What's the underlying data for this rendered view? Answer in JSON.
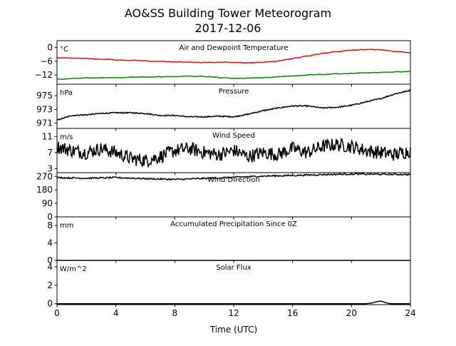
{
  "figure": {
    "title": "AO&SS Building Tower Meteorogram",
    "subtitle": "2017-12-06",
    "xlabel": "Time (UTC)",
    "colors": {
      "temperature": "#ee1111",
      "dewpoint": "#118811",
      "default": "#000000"
    }
  },
  "chart_data": [
    {
      "type": "line",
      "title": "Air and Dewpoint Temperature",
      "unit_label": "°C",
      "xlim": [
        0,
        24
      ],
      "ylim": [
        -16,
        3
      ],
      "yticks": [
        0,
        -6,
        -12
      ],
      "ytick_labels": [
        "0",
        "−6",
        "−12"
      ],
      "xticks": [
        0,
        4,
        8,
        12,
        16,
        20,
        24
      ],
      "series": [
        {
          "color": "#ee1111",
          "x": [
            0,
            2,
            4,
            6,
            8,
            10,
            12,
            13,
            14,
            15,
            16,
            17,
            18,
            19,
            20,
            21,
            22,
            23,
            24
          ],
          "y": [
            -4.5,
            -4.8,
            -5.4,
            -5.8,
            -6.3,
            -6.5,
            -6.4,
            -6.6,
            -6.5,
            -5.9,
            -4.8,
            -3.7,
            -2.6,
            -1.8,
            -1.2,
            -0.8,
            -1.0,
            -1.7,
            -2.4
          ]
        },
        {
          "color": "#118811",
          "x": [
            0,
            2,
            4,
            6,
            8,
            9,
            10,
            11,
            12,
            13,
            14,
            16,
            18,
            20,
            22,
            24
          ],
          "y": [
            -13.8,
            -13.3,
            -13.1,
            -12.9,
            -12.6,
            -12.5,
            -12.6,
            -13.1,
            -13.5,
            -13.4,
            -13.1,
            -12.4,
            -11.7,
            -11.3,
            -10.9,
            -10.4
          ]
        }
      ]
    },
    {
      "type": "line",
      "title": "Pressure",
      "unit_label": "hPa",
      "xlim": [
        0,
        24
      ],
      "ylim": [
        970.2,
        976.7
      ],
      "yticks": [
        971,
        973,
        975
      ],
      "ytick_labels": [
        "971",
        "973",
        "975"
      ],
      "xticks": [
        0,
        4,
        8,
        12,
        16,
        20,
        24
      ],
      "series": [
        {
          "color": "#000000",
          "x": [
            0,
            1,
            2,
            3,
            4,
            5,
            6,
            7,
            8,
            9,
            10,
            11,
            12,
            13,
            14,
            15,
            16,
            17,
            18,
            19,
            20,
            21,
            22,
            23,
            24
          ],
          "y": [
            971.4,
            972.1,
            972.2,
            972.4,
            972.5,
            972.5,
            972.4,
            972.1,
            972.1,
            971.9,
            971.9,
            972.0,
            971.9,
            972.3,
            972.8,
            973.2,
            973.5,
            973.5,
            973.2,
            973.3,
            973.6,
            974.1,
            974.6,
            975.3,
            975.8
          ]
        }
      ]
    },
    {
      "type": "line",
      "title": "Wind Speed",
      "unit_label": "m/s",
      "xlim": [
        0,
        24
      ],
      "ylim": [
        2,
        13
      ],
      "yticks": [
        3,
        7,
        11
      ],
      "ytick_labels": [
        "3",
        "7",
        "11"
      ],
      "xticks": [
        0,
        4,
        8,
        12,
        16,
        20,
        24
      ],
      "series": [
        {
          "color": "#000000",
          "x": [
            0,
            1,
            2,
            3,
            4,
            5,
            6,
            7,
            8,
            9,
            10,
            11,
            12,
            13,
            14,
            15,
            16,
            17,
            18,
            19,
            20,
            21,
            22,
            23,
            24
          ],
          "y": [
            8.5,
            7.5,
            7.0,
            8.0,
            7.0,
            5.5,
            5.0,
            6.0,
            7.5,
            8.0,
            7.0,
            6.5,
            7.5,
            6.0,
            7.0,
            6.5,
            8.0,
            7.0,
            8.5,
            9.0,
            8.5,
            7.5,
            7.0,
            6.5,
            7.5
          ]
        }
      ]
    },
    {
      "type": "line",
      "title": "Wind Direction",
      "unit_label": "",
      "xlim": [
        0,
        24
      ],
      "ylim": [
        0,
        295
      ],
      "yticks": [
        0,
        90,
        180,
        270
      ],
      "ytick_labels": [
        "0",
        "90",
        "180",
        "270"
      ],
      "xticks": [
        0,
        4,
        8,
        12,
        16,
        20,
        24
      ],
      "series": [
        {
          "color": "#000000",
          "x": [
            0,
            2,
            4,
            6,
            8,
            10,
            12,
            13,
            14,
            16,
            18,
            20,
            22,
            24
          ],
          "y": [
            262,
            258,
            262,
            255,
            250,
            256,
            264,
            268,
            272,
            276,
            282,
            286,
            284,
            283
          ]
        }
      ]
    },
    {
      "type": "line",
      "title": "Accumulated Precipitation Since 0Z",
      "unit_label": "mm",
      "xlim": [
        0,
        24
      ],
      "ylim": [
        0,
        10
      ],
      "yticks": [
        0,
        4,
        8
      ],
      "ytick_labels": [
        "0",
        "4",
        "8"
      ],
      "xticks": [
        0,
        4,
        8,
        12,
        16,
        20,
        24
      ],
      "series": [
        {
          "color": "#000000",
          "x": [
            0,
            24
          ],
          "y": [
            0,
            0
          ]
        }
      ]
    },
    {
      "type": "line",
      "title": "Solar Flux",
      "unit_label": "W/m^2",
      "xlim": [
        0,
        24
      ],
      "ylim": [
        -0.1,
        4.7
      ],
      "yticks": [
        0,
        2,
        4
      ],
      "ytick_labels": [
        "0",
        "2",
        "4"
      ],
      "xticks": [
        0,
        4,
        8,
        12,
        16,
        20,
        24
      ],
      "xtick_labels": [
        "0",
        "4",
        "8",
        "12",
        "16",
        "20",
        "24"
      ],
      "series": [
        {
          "color": "#000000",
          "x": [
            0,
            21.0,
            21.4,
            21.7,
            22.0,
            22.3,
            22.6,
            24
          ],
          "y": [
            0,
            0,
            0.08,
            0.22,
            0.28,
            0.12,
            0,
            0
          ]
        }
      ]
    }
  ]
}
